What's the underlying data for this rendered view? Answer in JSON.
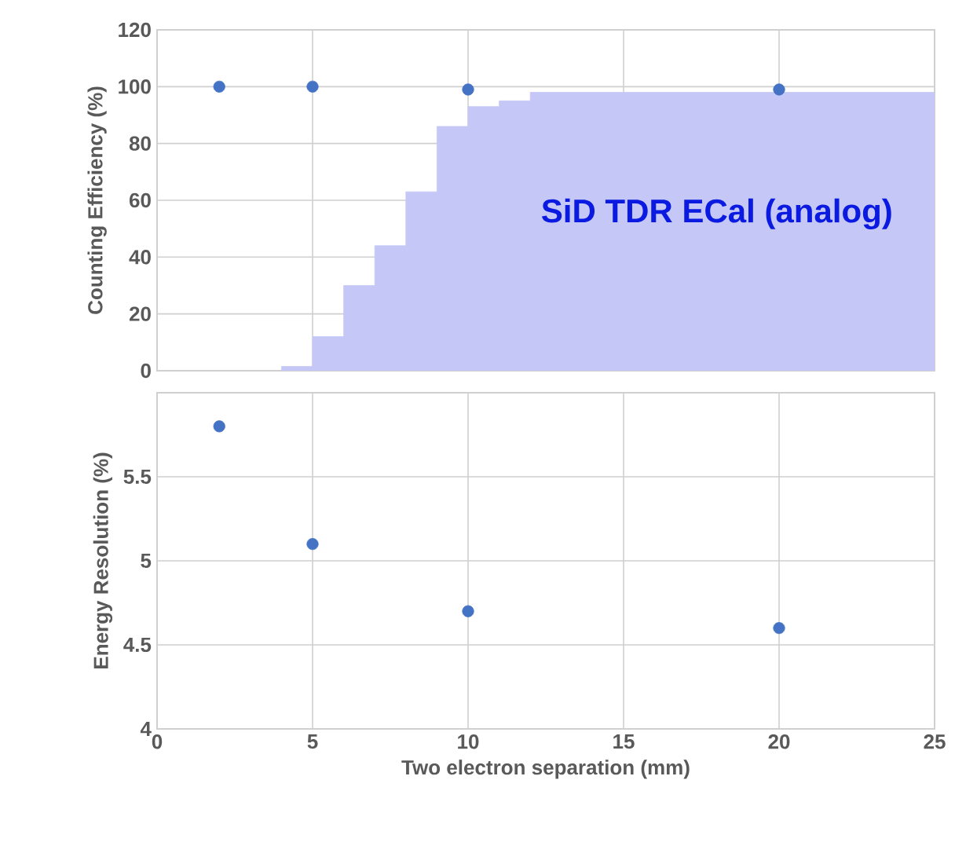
{
  "chart_data": [
    {
      "type": "scatter",
      "ylabel": "Counting Efficiency (%)",
      "xlim": [
        0,
        25
      ],
      "xticks": [
        0,
        5,
        10,
        15,
        20,
        25
      ],
      "ylim": [
        0,
        120
      ],
      "yticks": [
        0,
        20,
        40,
        60,
        80,
        100,
        120
      ],
      "grid": true,
      "tick_labels": "y",
      "series": [
        {
          "type": "area",
          "color": "#c5c8f6",
          "x": [
            4,
            5,
            6,
            7,
            8,
            9,
            10,
            11,
            12,
            25
          ],
          "values": [
            1.5,
            12,
            30,
            44,
            63,
            86,
            93,
            95,
            98,
            98
          ]
        },
        {
          "type": "scatter",
          "marker": "circle",
          "color": "#4472c4",
          "x": [
            2,
            5,
            10,
            20
          ],
          "values": [
            100,
            100,
            99,
            99
          ]
        }
      ],
      "annotations": [
        "SiD TDR ECal (analog)"
      ]
    },
    {
      "type": "scatter",
      "xlabel": "Two electron separation (mm)",
      "ylabel": "Energy Resolution (%)",
      "xlim": [
        0,
        25
      ],
      "xticks": [
        0,
        5,
        10,
        15,
        20,
        25
      ],
      "ylim": [
        4,
        6
      ],
      "yticks": [
        4,
        4.5,
        5,
        5.5
      ],
      "grid": true,
      "marker": "circle",
      "series": [
        {
          "type": "scatter",
          "color": "#4472c4",
          "x": [
            2,
            5,
            10,
            20
          ],
          "values": [
            5.8,
            5.1,
            4.7,
            4.6
          ]
        }
      ]
    }
  ]
}
